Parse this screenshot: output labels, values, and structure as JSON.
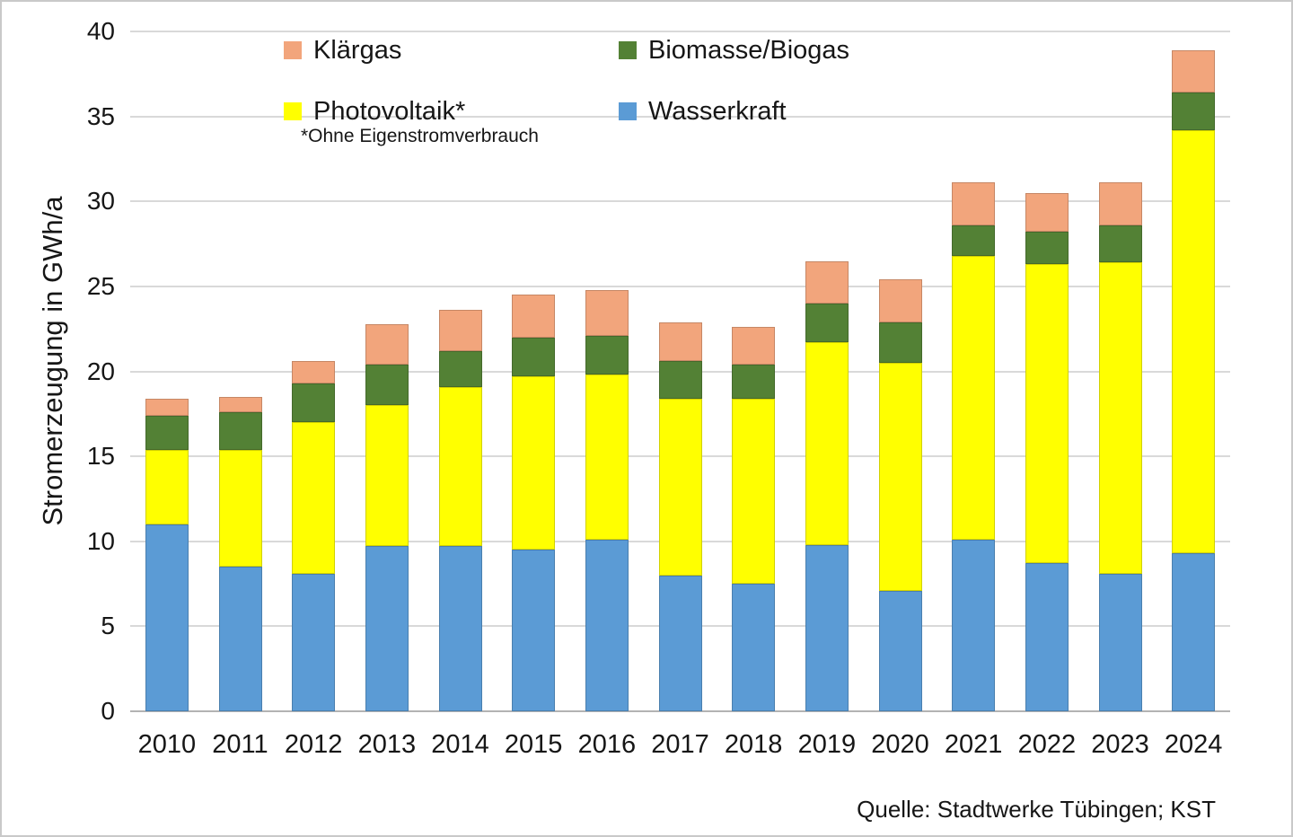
{
  "chart_data": {
    "type": "bar",
    "stacked": true,
    "title": "",
    "xlabel": "",
    "ylabel": "Stromerzeugung in GWh/a",
    "ylim": [
      0,
      40
    ],
    "ytick_step": 5,
    "grid": true,
    "legend_position": "top-left-overlay",
    "categories": [
      "2010",
      "2011",
      "2012",
      "2013",
      "2014",
      "2015",
      "2016",
      "2017",
      "2018",
      "2019",
      "2020",
      "2021",
      "2022",
      "2023",
      "2024"
    ],
    "series": [
      {
        "name": "Wasserkraft",
        "color": "#5B9BD5",
        "values": [
          11.0,
          8.5,
          8.1,
          9.7,
          9.7,
          9.5,
          10.1,
          8.0,
          7.5,
          9.8,
          7.1,
          10.1,
          8.7,
          8.1,
          9.3
        ]
      },
      {
        "name": "Photovoltaik*",
        "color": "#FFFF00",
        "values": [
          4.4,
          6.9,
          8.9,
          8.3,
          9.4,
          10.2,
          9.7,
          10.4,
          10.9,
          11.9,
          13.4,
          16.7,
          17.6,
          18.3,
          24.9
        ]
      },
      {
        "name": "Biomasse/Biogas",
        "color": "#538135",
        "values": [
          2.0,
          2.2,
          2.3,
          2.4,
          2.1,
          2.3,
          2.3,
          2.2,
          2.0,
          2.3,
          2.4,
          1.8,
          1.9,
          2.2,
          2.2
        ]
      },
      {
        "name": "Klärgas",
        "color": "#F2A57C",
        "values": [
          1.0,
          0.9,
          1.3,
          2.4,
          2.4,
          2.5,
          2.7,
          2.3,
          2.2,
          2.5,
          2.5,
          2.5,
          2.3,
          2.5,
          2.5
        ]
      }
    ],
    "totals": [
      18.4,
      18.5,
      20.6,
      22.8,
      23.6,
      24.5,
      24.8,
      22.9,
      22.6,
      26.5,
      25.4,
      31.1,
      30.5,
      31.1,
      38.9
    ],
    "legend": {
      "items": [
        {
          "label": "Klärgas",
          "color": "#F2A57C"
        },
        {
          "label": "Biomasse/Biogas",
          "color": "#538135"
        },
        {
          "label": "Photovoltaik*",
          "color": "#FFFF00"
        },
        {
          "label": "Wasserkraft",
          "color": "#5B9BD5"
        }
      ],
      "note": "*Ohne Eigenstromverbrauch"
    }
  },
  "footer": {
    "source": "Quelle: Stadtwerke Tübingen; KST"
  }
}
